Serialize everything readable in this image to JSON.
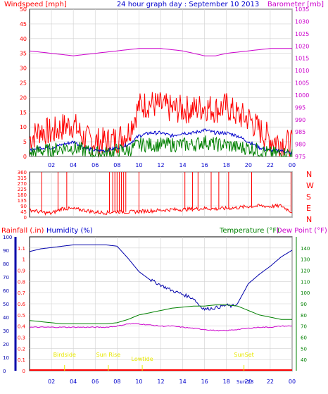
{
  "header": {
    "left_label": "Windspeed [mph]",
    "title": "24 hour graph day : September 10 2013",
    "right_label": "Barometer [mb]"
  },
  "bottom_header": {
    "rainfall_label": "Rainfall (.in)",
    "humidity_label": "Humidity (%)",
    "temperature_label": "Temperature (°F)",
    "dewpoint_label": "Dew Point (°F)"
  },
  "colors": {
    "wind": "#ff0000",
    "gust_avg": "#0000cc",
    "wind_low": "#008000",
    "barometer": "#cc00cc",
    "direction": "#ff0000",
    "humidity": "#0000aa",
    "temperature": "#008000",
    "dewpoint": "#cc00cc",
    "rain": "#ff0000",
    "annotation": "#e8e800",
    "grid": "#d0d0d0",
    "frame": "#000000"
  },
  "chart_data": [
    {
      "type": "line",
      "name_id": "wind-barometer",
      "x_ticks": [
        "02",
        "04",
        "06",
        "08",
        "10",
        "12",
        "14",
        "16",
        "18",
        "20",
        "22",
        "00"
      ],
      "y_left_ticks": [
        0,
        5,
        10,
        15,
        20,
        25,
        30,
        35,
        40,
        45,
        50
      ],
      "y_left_range": [
        0,
        50
      ],
      "y_right_ticks": [
        975,
        980,
        985,
        990,
        995,
        1000,
        1005,
        1010,
        1015,
        1020,
        1025,
        1030,
        1035
      ],
      "y_right_range": [
        975,
        1035
      ],
      "grid": true,
      "series": [
        {
          "key": "windspeed",
          "hours": [
            0,
            1,
            2,
            3,
            4,
            5,
            6,
            7,
            8,
            9,
            10,
            11,
            12,
            13,
            14,
            15,
            16,
            17,
            18,
            19,
            20,
            21,
            22,
            23,
            24
          ],
          "values": [
            6,
            9,
            8,
            10,
            11,
            6,
            5,
            5,
            6,
            8,
            17,
            18,
            17,
            16,
            16,
            16,
            17,
            16,
            17,
            14,
            13,
            9,
            6,
            5,
            4
          ]
        },
        {
          "key": "average",
          "hours": [
            0,
            1,
            2,
            3,
            4,
            5,
            6,
            7,
            8,
            9,
            10,
            11,
            12,
            13,
            14,
            15,
            16,
            17,
            18,
            19,
            20,
            21,
            22,
            23,
            24
          ],
          "values": [
            2,
            3,
            3,
            4,
            5,
            3,
            2,
            2,
            3,
            4,
            7,
            8,
            8,
            7,
            8,
            8,
            9,
            8,
            8,
            7,
            5,
            3,
            2,
            2,
            1
          ]
        },
        {
          "key": "wind_low",
          "hours": [
            0,
            1,
            2,
            3,
            4,
            5,
            6,
            7,
            8,
            9,
            10,
            11,
            12,
            13,
            14,
            15,
            16,
            17,
            18,
            19,
            20,
            21,
            22,
            23,
            24
          ],
          "values": [
            1,
            2,
            2,
            3,
            3,
            2,
            1,
            1,
            2,
            2,
            4,
            4,
            4,
            4,
            4,
            4,
            5,
            4,
            4,
            3,
            3,
            2,
            1,
            1,
            1
          ]
        },
        {
          "key": "barometer",
          "hours": [
            0,
            2,
            4,
            6,
            8,
            10,
            12,
            14,
            16,
            17,
            18,
            20,
            22,
            24
          ],
          "values": [
            1018,
            1017,
            1016,
            1017,
            1018,
            1019,
            1019,
            1018,
            1016,
            1016,
            1017,
            1018,
            1019,
            1019
          ]
        }
      ]
    },
    {
      "type": "scatter",
      "name_id": "wind-direction",
      "y_left_ticks": [
        0,
        45,
        90,
        135,
        180,
        225,
        270,
        315,
        360
      ],
      "y_left_range": [
        0,
        360
      ],
      "right_labels": [
        "N",
        "W",
        "S",
        "E",
        "N"
      ],
      "grid": true,
      "series": [
        {
          "key": "direction",
          "hours": [
            0,
            1,
            2,
            3,
            4,
            5,
            6,
            7,
            8,
            9,
            10,
            11,
            12,
            13,
            14,
            15,
            16,
            17,
            18,
            19,
            20,
            21,
            22,
            23,
            24
          ],
          "values": [
            60,
            40,
            30,
            70,
            65,
            55,
            40,
            35,
            45,
            40,
            45,
            50,
            55,
            60,
            60,
            65,
            70,
            65,
            70,
            75,
            85,
            90,
            85,
            90,
            40
          ]
        }
      ],
      "spikes_hours": [
        1.1,
        2.6,
        3.4,
        7.3,
        7.6,
        7.8,
        8.0,
        8.2,
        8.4,
        8.6,
        8.8,
        10.0,
        14.2,
        14.9,
        15.4,
        16.6,
        17.3,
        18.2,
        20.3,
        23.9
      ]
    },
    {
      "type": "line",
      "name_id": "humidity-temperature",
      "y_left_ticks": [
        0,
        10,
        20,
        30,
        40,
        50,
        60,
        70,
        80,
        90,
        100
      ],
      "y_left_range": [
        0,
        100
      ],
      "y_rain_ticks": [
        0,
        0.1,
        0.2,
        0.3,
        0.4,
        0.5,
        0.6,
        0.7,
        0.8,
        0.9,
        1,
        1.1
      ],
      "y_rain_range": [
        0,
        1.2
      ],
      "y_right_ticks": [
        40,
        50,
        60,
        70,
        80,
        90,
        100,
        110,
        120,
        130,
        140
      ],
      "y_right_range": [
        30,
        150
      ],
      "grid": true,
      "annotations": [
        {
          "text": "Birdside",
          "hour": 3.2
        },
        {
          "text": "Sun Rise",
          "hour": 7.2
        },
        {
          "text": "Lowtide",
          "hour": 10.3
        },
        {
          "text": "SunSet",
          "hour": 19.6
        }
      ],
      "series": [
        {
          "key": "humidity",
          "hours": [
            0,
            1,
            2,
            3,
            4,
            5,
            6,
            7,
            8,
            9,
            10,
            11,
            12,
            13,
            14,
            15,
            15.5,
            16,
            17,
            18,
            18.5,
            19,
            20,
            21,
            22,
            23,
            24
          ],
          "values": [
            89,
            91,
            92,
            93,
            94,
            94,
            94,
            94,
            93,
            84,
            74,
            68,
            64,
            60,
            57,
            54,
            49,
            46,
            47,
            49,
            48,
            50,
            65,
            72,
            78,
            85,
            90
          ]
        },
        {
          "key": "temperature",
          "hours": [
            0,
            1,
            2,
            3,
            4,
            5,
            6,
            7,
            8,
            9,
            10,
            11,
            12,
            13,
            14,
            15,
            16,
            17,
            18,
            19,
            20,
            21,
            22,
            23,
            24
          ],
          "values": [
            75,
            74,
            73,
            72,
            72,
            72,
            72,
            72,
            73,
            76,
            80,
            82,
            84,
            86,
            87,
            88,
            88,
            89,
            89,
            88,
            84,
            80,
            78,
            76,
            76
          ]
        },
        {
          "key": "dewpoint",
          "hours": [
            0,
            1,
            2,
            3,
            4,
            5,
            6,
            7,
            8,
            9,
            10,
            11,
            12,
            13,
            14,
            15,
            16,
            17,
            18,
            19,
            20,
            21,
            22,
            23,
            24
          ],
          "values": [
            69,
            69,
            69,
            69,
            69,
            69,
            69,
            69,
            70,
            72,
            72,
            71,
            70,
            70,
            69,
            68,
            67,
            66,
            66,
            67,
            68,
            69,
            69,
            70,
            70
          ]
        },
        {
          "key": "rainfall",
          "hours": [
            0,
            24
          ],
          "values": [
            0,
            0
          ]
        }
      ],
      "bottom_sun_label": "Sun 23"
    }
  ]
}
